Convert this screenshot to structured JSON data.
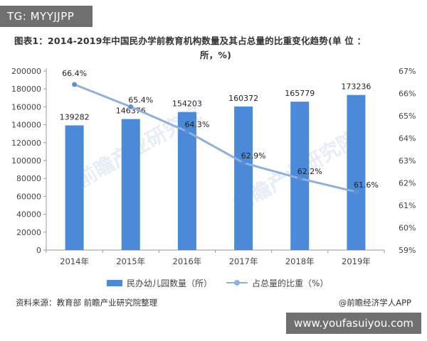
{
  "badges": {
    "tg": "TG: MYYJJPP",
    "site": "www.youfasuiyou.com"
  },
  "chart_data": {
    "type": "bar",
    "title_line1": "图表1：2014-2019年中国民办学前教育机构数量及其占总量的比重变化趋势(单 位 ：",
    "title_line2": "所，%)",
    "categories": [
      "2014年",
      "2015年",
      "2016年",
      "2017年",
      "2018年",
      "2019年"
    ],
    "series": [
      {
        "name": "民办幼儿园数量（所）",
        "type": "bar",
        "axis": "left",
        "values": [
          139282,
          146376,
          154203,
          160372,
          165779,
          173236
        ]
      },
      {
        "name": "占总量的比重（%）",
        "type": "line",
        "axis": "right",
        "values": [
          66.4,
          65.4,
          64.3,
          62.9,
          62.2,
          61.6
        ],
        "labels": [
          "66.4%",
          "65.4%",
          "64.3%",
          "62.9%",
          "62.2%",
          "61.6%"
        ]
      }
    ],
    "y_left": {
      "min": 0,
      "max": 200000,
      "step": 20000,
      "ticks": [
        "0",
        "20000",
        "40000",
        "60000",
        "80000",
        "100000",
        "120000",
        "140000",
        "160000",
        "180000",
        "200000"
      ]
    },
    "y_right": {
      "min": 59,
      "max": 67,
      "step": 1,
      "ticks": [
        "59%",
        "60%",
        "61%",
        "62%",
        "63%",
        "64%",
        "65%",
        "66%",
        "67%"
      ]
    },
    "grid": false,
    "legend_position": "bottom",
    "colors": {
      "bar": "#4a8ad8",
      "line": "#8fb0dd",
      "axis": "#999999",
      "text": "#444444"
    }
  },
  "footer": {
    "source": "资料来源：教育部 前瞻产业研究院整理",
    "credit": "@前瞻经济学人APP"
  },
  "watermark": "前瞻产业研究院"
}
